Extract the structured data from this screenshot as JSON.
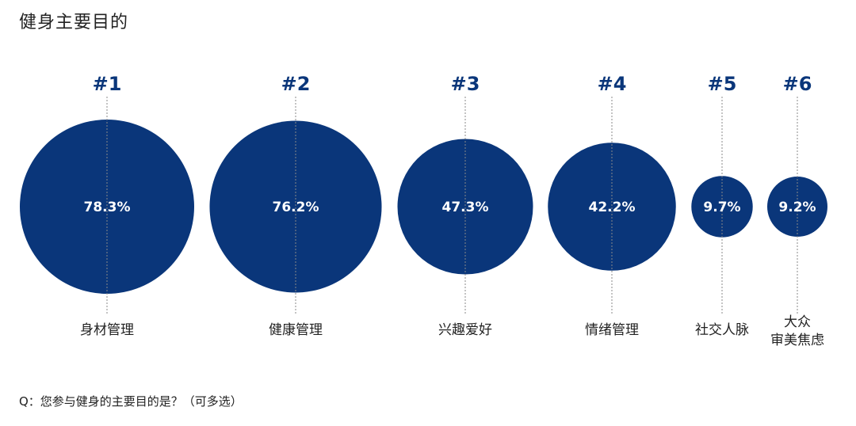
{
  "chart_data": {
    "type": "bubble",
    "title": "健身主要目的",
    "unit": "%",
    "items": [
      {
        "rank": "#1",
        "label": "身材管理",
        "value": 78.3,
        "value_label": "78.3%"
      },
      {
        "rank": "#2",
        "label": "健康管理",
        "value": 76.2,
        "value_label": "76.2%"
      },
      {
        "rank": "#3",
        "label": "兴趣爱好",
        "value": 47.3,
        "value_label": "47.3%"
      },
      {
        "rank": "#4",
        "label": "情绪管理",
        "value": 42.2,
        "value_label": "42.2%"
      },
      {
        "rank": "#5",
        "label": "社交人脉",
        "value": 9.7,
        "value_label": "9.7%"
      },
      {
        "rank": "#6",
        "label": "大众\n审美焦虑",
        "value": 9.2,
        "value_label": "9.2%"
      }
    ],
    "colors": {
      "bubble": "#0a367a",
      "rank_text": "#0a367a",
      "value_text": "#ffffff",
      "guide_line": "#888888"
    }
  },
  "footnote": "Q：您参与健身的主要目的是？（可多选）"
}
